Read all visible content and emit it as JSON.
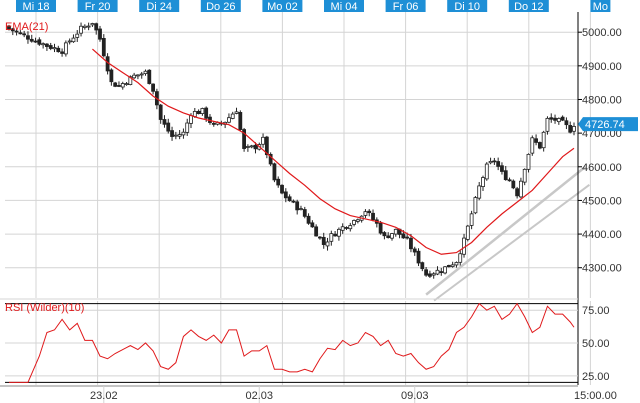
{
  "chart_data": [
    {
      "type": "candlestick",
      "indicator_label": "EMA(21)",
      "top_date_labels": [
        "Mi 18",
        "Fr 20",
        "Di 24",
        "Do 26",
        "Mo 02",
        "Mi 04",
        "Fr 06",
        "Di 10",
        "Do 12",
        "Mo"
      ],
      "bottom_date_labels": [
        "23.02",
        "02.03",
        "09.03"
      ],
      "y_ticks": [
        "5000.00",
        "4900.00",
        "4800.00",
        "4700.00",
        "4600.00",
        "4500.00",
        "4400.00",
        "4300.00"
      ],
      "ylim": [
        4210,
        5060
      ],
      "last_price": "4726.74",
      "grid": true,
      "series": [
        {
          "role": "price",
          "anchor_closes": [
            [
              0,
              5010
            ],
            [
              5,
              4985
            ],
            [
              10,
              4960
            ],
            [
              14,
              4945
            ],
            [
              16,
              4975
            ],
            [
              19,
              5010
            ],
            [
              22,
              5030
            ],
            [
              24,
              4980
            ],
            [
              27,
              4850
            ],
            [
              29,
              4840
            ],
            [
              33,
              4870
            ],
            [
              36,
              4880
            ],
            [
              38,
              4830
            ],
            [
              40,
              4740
            ],
            [
              43,
              4690
            ],
            [
              46,
              4700
            ],
            [
              48,
              4760
            ],
            [
              51,
              4765
            ],
            [
              54,
              4720
            ],
            [
              57,
              4735
            ],
            [
              60,
              4770
            ],
            [
              62,
              4650
            ],
            [
              65,
              4660
            ],
            [
              67,
              4680
            ],
            [
              70,
              4560
            ],
            [
              72,
              4520
            ],
            [
              75,
              4490
            ],
            [
              77,
              4470
            ],
            [
              80,
              4420
            ],
            [
              83,
              4370
            ],
            [
              85,
              4395
            ],
            [
              88,
              4420
            ],
            [
              91,
              4440
            ],
            [
              94,
              4470
            ],
            [
              97,
              4430
            ],
            [
              99,
              4390
            ],
            [
              102,
              4410
            ],
            [
              105,
              4380
            ],
            [
              108,
              4320
            ],
            [
              110,
              4280
            ],
            [
              113,
              4290
            ],
            [
              115,
              4300
            ],
            [
              118,
              4320
            ],
            [
              120,
              4380
            ],
            [
              122,
              4460
            ],
            [
              124,
              4540
            ],
            [
              126,
              4600
            ],
            [
              128,
              4620
            ],
            [
              130,
              4580
            ],
            [
              132,
              4560
            ],
            [
              134,
              4520
            ],
            [
              136,
              4600
            ],
            [
              138,
              4680
            ],
            [
              140,
              4660
            ],
            [
              142,
              4740
            ],
            [
              144,
              4740
            ],
            [
              146,
              4730
            ],
            [
              148,
              4710
            ],
            [
              149,
              4726.74
            ]
          ]
        },
        {
          "role": "ema",
          "name": "EMA(21)",
          "color": "#e0191b",
          "points": [
            [
              22,
              4950
            ],
            [
              26,
              4910
            ],
            [
              30,
              4880
            ],
            [
              34,
              4850
            ],
            [
              38,
              4810
            ],
            [
              42,
              4780
            ],
            [
              46,
              4760
            ],
            [
              50,
              4745
            ],
            [
              54,
              4735
            ],
            [
              58,
              4725
            ],
            [
              62,
              4700
            ],
            [
              66,
              4660
            ],
            [
              70,
              4620
            ],
            [
              74,
              4580
            ],
            [
              78,
              4545
            ],
            [
              82,
              4505
            ],
            [
              86,
              4475
            ],
            [
              90,
              4455
            ],
            [
              94,
              4445
            ],
            [
              98,
              4435
            ],
            [
              102,
              4420
            ],
            [
              106,
              4395
            ],
            [
              110,
              4360
            ],
            [
              114,
              4340
            ],
            [
              118,
              4345
            ],
            [
              122,
              4375
            ],
            [
              126,
              4420
            ],
            [
              130,
              4460
            ],
            [
              134,
              4495
            ],
            [
              138,
              4530
            ],
            [
              142,
              4580
            ],
            [
              146,
              4630
            ],
            [
              149,
              4655
            ]
          ]
        }
      ],
      "trendline": {
        "color": "#c8c8c8",
        "from": [
          110,
          4220
        ],
        "to": [
          152,
          4600
        ]
      },
      "styles": {
        "candle_up": "#ffffff",
        "candle_down": "#222222",
        "wick": "#222222",
        "tag_bg": "#1e8fd6",
        "axis": "#000000",
        "grid": "#d4d4d4"
      }
    },
    {
      "type": "line",
      "indicator_label": "RSI (Wilder)(10)",
      "y_ticks": [
        "75.00",
        "50.00",
        "25.00"
      ],
      "ylim": [
        18,
        82
      ],
      "bottom_tick": "15:00.00",
      "reference_lines": [
        80,
        20
      ],
      "color": "#e0191b",
      "points": [
        [
          0,
          20
        ],
        [
          5,
          20
        ],
        [
          8,
          40
        ],
        [
          10,
          58
        ],
        [
          12,
          60
        ],
        [
          14,
          68
        ],
        [
          16,
          60
        ],
        [
          18,
          65
        ],
        [
          20,
          52
        ],
        [
          22,
          52
        ],
        [
          24,
          40
        ],
        [
          26,
          38
        ],
        [
          28,
          42
        ],
        [
          30,
          45
        ],
        [
          32,
          48
        ],
        [
          34,
          45
        ],
        [
          36,
          50
        ],
        [
          38,
          44
        ],
        [
          40,
          32
        ],
        [
          42,
          30
        ],
        [
          44,
          35
        ],
        [
          46,
          55
        ],
        [
          48,
          60
        ],
        [
          50,
          55
        ],
        [
          52,
          52
        ],
        [
          54,
          56
        ],
        [
          56,
          50
        ],
        [
          58,
          60
        ],
        [
          60,
          60
        ],
        [
          62,
          40
        ],
        [
          64,
          44
        ],
        [
          66,
          44
        ],
        [
          68,
          48
        ],
        [
          70,
          30
        ],
        [
          72,
          30
        ],
        [
          74,
          28
        ],
        [
          76,
          28
        ],
        [
          78,
          30
        ],
        [
          80,
          28
        ],
        [
          82,
          38
        ],
        [
          84,
          46
        ],
        [
          86,
          45
        ],
        [
          88,
          52
        ],
        [
          90,
          48
        ],
        [
          92,
          50
        ],
        [
          94,
          58
        ],
        [
          96,
          55
        ],
        [
          98,
          48
        ],
        [
          100,
          52
        ],
        [
          102,
          42
        ],
        [
          104,
          40
        ],
        [
          106,
          42
        ],
        [
          108,
          35
        ],
        [
          110,
          30
        ],
        [
          112,
          32
        ],
        [
          114,
          40
        ],
        [
          116,
          45
        ],
        [
          118,
          58
        ],
        [
          120,
          62
        ],
        [
          122,
          70
        ],
        [
          124,
          80
        ],
        [
          126,
          75
        ],
        [
          128,
          78
        ],
        [
          130,
          68
        ],
        [
          132,
          72
        ],
        [
          134,
          80
        ],
        [
          136,
          70
        ],
        [
          138,
          58
        ],
        [
          140,
          62
        ],
        [
          142,
          78
        ],
        [
          144,
          72
        ],
        [
          146,
          72
        ],
        [
          148,
          66
        ],
        [
          149,
          62
        ]
      ]
    }
  ]
}
